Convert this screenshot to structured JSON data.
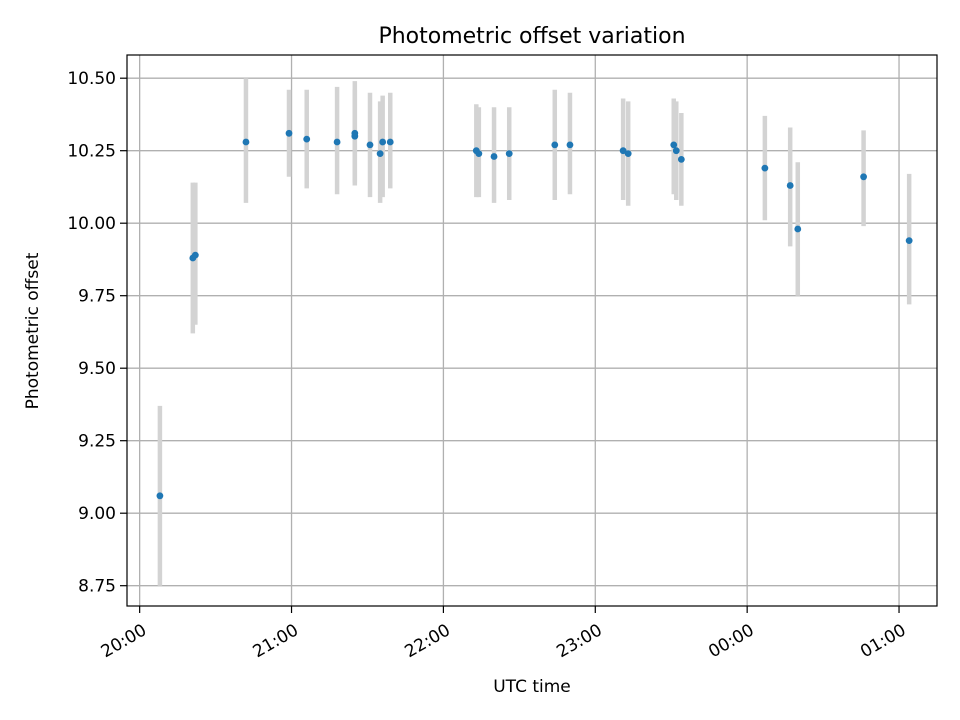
{
  "chart_data": {
    "type": "scatter",
    "title": "Photometric offset variation",
    "xlabel": "UTC time",
    "ylabel": "Photometric offset",
    "x_tick_labels": [
      "20:00",
      "21:00",
      "22:00",
      "23:00",
      "00:00",
      "01:00"
    ],
    "x_tick_times": [
      "20:00",
      "21:00",
      "22:00",
      "23:00",
      "00:00",
      "01:00"
    ],
    "y_ticks": [
      8.75,
      9.0,
      9.25,
      9.5,
      9.75,
      10.0,
      10.25,
      10.5
    ],
    "y_tick_labels": [
      "8.75",
      "9.00",
      "9.25",
      "9.50",
      "9.75",
      "10.00",
      "10.25",
      "10.50"
    ],
    "xlim": [
      "19:55",
      "01:15"
    ],
    "ylim": [
      8.68,
      10.58
    ],
    "grid": true,
    "marker_color": "#1f77b4",
    "errorbar_color": "#d3d3d3",
    "points": [
      {
        "t": "20:08",
        "y": 9.06,
        "lo": 8.75,
        "hi": 9.37
      },
      {
        "t": "20:21",
        "y": 9.88,
        "lo": 9.62,
        "hi": 10.14
      },
      {
        "t": "20:22",
        "y": 9.89,
        "lo": 9.65,
        "hi": 10.14
      },
      {
        "t": "20:42",
        "y": 10.28,
        "lo": 10.07,
        "hi": 10.5
      },
      {
        "t": "20:59",
        "y": 10.31,
        "lo": 10.16,
        "hi": 10.46
      },
      {
        "t": "21:06",
        "y": 10.29,
        "lo": 10.12,
        "hi": 10.46
      },
      {
        "t": "21:18",
        "y": 10.28,
        "lo": 10.1,
        "hi": 10.47
      },
      {
        "t": "21:25",
        "y": 10.3,
        "lo": 10.14,
        "hi": 10.46
      },
      {
        "t": "21:25",
        "y": 10.31,
        "lo": 10.13,
        "hi": 10.49
      },
      {
        "t": "21:31",
        "y": 10.27,
        "lo": 10.09,
        "hi": 10.45
      },
      {
        "t": "21:35",
        "y": 10.24,
        "lo": 10.07,
        "hi": 10.42
      },
      {
        "t": "21:36",
        "y": 10.28,
        "lo": 10.09,
        "hi": 10.44
      },
      {
        "t": "21:39",
        "y": 10.28,
        "lo": 10.12,
        "hi": 10.45
      },
      {
        "t": "22:13",
        "y": 10.25,
        "lo": 10.09,
        "hi": 10.41
      },
      {
        "t": "22:14",
        "y": 10.24,
        "lo": 10.09,
        "hi": 10.4
      },
      {
        "t": "22:20",
        "y": 10.23,
        "lo": 10.07,
        "hi": 10.4
      },
      {
        "t": "22:26",
        "y": 10.24,
        "lo": 10.08,
        "hi": 10.4
      },
      {
        "t": "22:44",
        "y": 10.27,
        "lo": 10.08,
        "hi": 10.46
      },
      {
        "t": "22:50",
        "y": 10.27,
        "lo": 10.1,
        "hi": 10.45
      },
      {
        "t": "23:11",
        "y": 10.25,
        "lo": 10.08,
        "hi": 10.43
      },
      {
        "t": "23:13",
        "y": 10.24,
        "lo": 10.06,
        "hi": 10.42
      },
      {
        "t": "23:31",
        "y": 10.27,
        "lo": 10.1,
        "hi": 10.43
      },
      {
        "t": "23:32",
        "y": 10.25,
        "lo": 10.08,
        "hi": 10.42
      },
      {
        "t": "23:34",
        "y": 10.22,
        "lo": 10.06,
        "hi": 10.38
      },
      {
        "t": "00:07",
        "y": 10.19,
        "lo": 10.01,
        "hi": 10.37
      },
      {
        "t": "00:17",
        "y": 10.13,
        "lo": 9.92,
        "hi": 10.33
      },
      {
        "t": "00:20",
        "y": 9.98,
        "lo": 9.75,
        "hi": 10.21
      },
      {
        "t": "00:46",
        "y": 10.16,
        "lo": 9.99,
        "hi": 10.32
      },
      {
        "t": "01:04",
        "y": 9.94,
        "lo": 9.72,
        "hi": 10.17
      }
    ]
  }
}
